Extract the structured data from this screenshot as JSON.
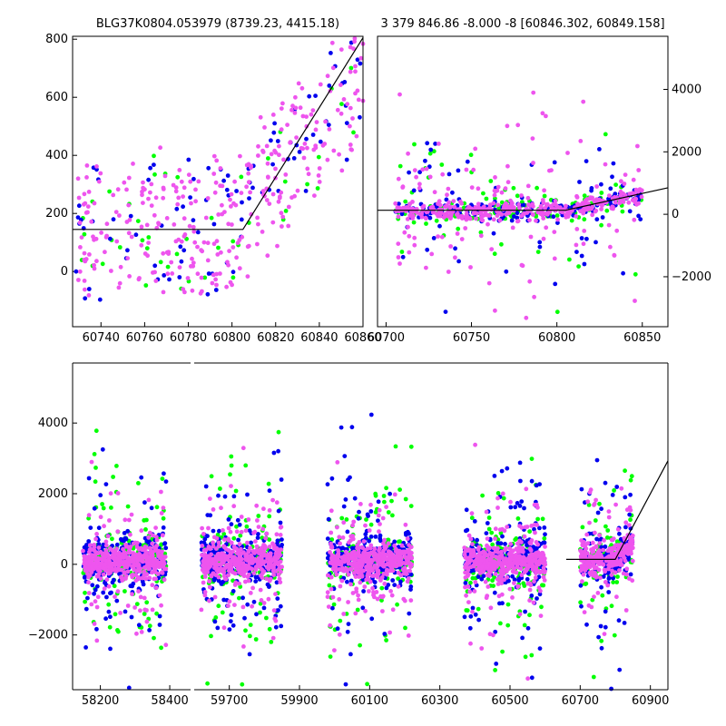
{
  "chart_data": [
    {
      "panel": "top-left",
      "type": "scatter",
      "title": "BLG37K0804.053979 (8739.23, 4415.18)",
      "xlabel": "",
      "ylabel": "",
      "xlim": [
        60727,
        60860
      ],
      "ylim": [
        -190,
        810
      ],
      "xticks": [
        60740,
        60760,
        60780,
        60800,
        60820,
        60840,
        60860
      ],
      "yticks": [
        0,
        200,
        400,
        600,
        800
      ],
      "ytick_side": "left",
      "series_colors": {
        "green": "#00ff00",
        "blue": "#0000ee",
        "pink": "#ee55ee"
      },
      "model_line": {
        "x": [
          60727,
          60805,
          60860
        ],
        "y": [
          145,
          145,
          805
        ]
      },
      "points": {
        "seed": 11,
        "n_green": 45,
        "n_blue": 95,
        "n_pink": 330,
        "x_range": [
          60727,
          60860
        ],
        "baseline": 150,
        "spread": 210,
        "rise": 550,
        "rise_start": 60800
      }
    },
    {
      "panel": "top-right",
      "type": "scatter",
      "title": "3 379 846.86 -8.000 -8 [60846.302, 60849.158]",
      "xlabel": "",
      "ylabel": "",
      "xlim": [
        60695,
        60865
      ],
      "ylim": [
        -3600,
        5700
      ],
      "xticks": [
        60700,
        60750,
        60800,
        60850
      ],
      "yticks": [
        -2000,
        0,
        2000,
        4000
      ],
      "ytick_side": "right",
      "series_colors": {
        "green": "#00ff00",
        "blue": "#0000ee",
        "pink": "#ee55ee"
      },
      "model_line": {
        "x": [
          60695,
          60805,
          60865
        ],
        "y": [
          130,
          130,
          850
        ]
      },
      "points": {
        "seed": 23,
        "n_green": 160,
        "n_blue": 220,
        "n_pink": 420,
        "x_range": [
          60705,
          60850
        ],
        "baseline": 100,
        "spread": 450,
        "rise": 500,
        "rise_start": 60800
      }
    },
    {
      "panel": "bottom",
      "type": "scatter",
      "xlabel": "",
      "ylabel": "",
      "ylim": [
        -3550,
        5700
      ],
      "yticks": [
        -2000,
        0,
        2000,
        4000
      ],
      "ytick_side": "left",
      "series_colors": {
        "green": "#00ff00",
        "blue": "#0000ee",
        "pink": "#ee55ee"
      },
      "segments": [
        {
          "xlim": [
            58120,
            58460
          ],
          "xticks": [
            58200,
            58400
          ]
        },
        {
          "xlim": [
            59600,
            60950
          ],
          "xticks": [
            59700,
            59900,
            60100,
            60300,
            60500,
            60700,
            60900
          ]
        }
      ],
      "clusters": [
        {
          "segment": 0,
          "x_range": [
            58150,
            58390
          ],
          "n": 900,
          "seed": 31
        },
        {
          "segment": 1,
          "x_range": [
            59620,
            59850
          ],
          "n": 900,
          "seed": 41
        },
        {
          "segment": 1,
          "x_range": [
            59980,
            60220
          ],
          "n": 900,
          "seed": 51
        },
        {
          "segment": 1,
          "x_range": [
            60370,
            60600
          ],
          "n": 900,
          "seed": 61
        },
        {
          "segment": 1,
          "x_range": [
            60700,
            60850
          ],
          "n": 500,
          "seed": 71
        }
      ],
      "model_line": {
        "segment": 1,
        "x": [
          60660,
          60800,
          60960
        ],
        "y": [
          140,
          140,
          2930
        ]
      }
    }
  ]
}
